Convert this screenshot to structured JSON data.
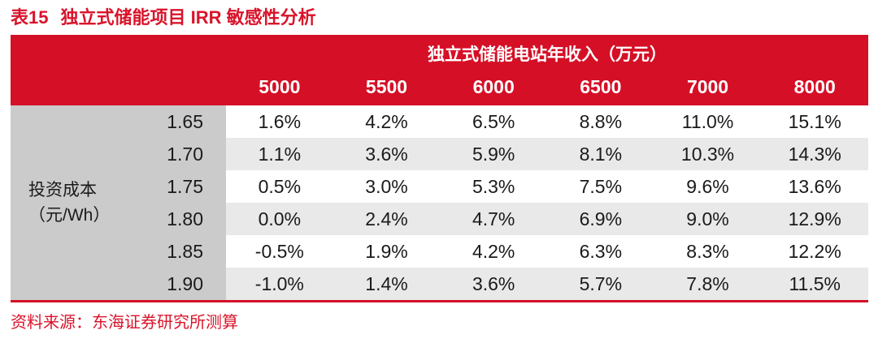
{
  "title": {
    "prefix": "表15",
    "text": "独立式储能项目 IRR 敏感性分析"
  },
  "table": {
    "column_group_header": "独立式储能电站年收入（万元）",
    "row_group_label_line1": "投资成本",
    "row_group_label_line2": "（元/Wh）",
    "column_headers": [
      "5000",
      "5500",
      "6000",
      "6500",
      "7000",
      "8000"
    ],
    "rows": [
      {
        "cost": "1.65",
        "values": [
          "1.6%",
          "4.2%",
          "6.5%",
          "8.8%",
          "11.0%",
          "15.1%"
        ]
      },
      {
        "cost": "1.70",
        "values": [
          "1.1%",
          "3.6%",
          "5.9%",
          "8.1%",
          "10.3%",
          "14.3%"
        ]
      },
      {
        "cost": "1.75",
        "values": [
          "0.5%",
          "3.0%",
          "5.3%",
          "7.5%",
          "9.6%",
          "13.6%"
        ]
      },
      {
        "cost": "1.80",
        "values": [
          "0.0%",
          "2.4%",
          "4.7%",
          "6.9%",
          "9.0%",
          "12.9%"
        ]
      },
      {
        "cost": "1.85",
        "values": [
          "-0.5%",
          "1.9%",
          "4.2%",
          "6.3%",
          "8.3%",
          "12.2%"
        ]
      },
      {
        "cost": "1.90",
        "values": [
          "-1.0%",
          "1.4%",
          "3.6%",
          "5.7%",
          "7.8%",
          "11.5%"
        ]
      }
    ]
  },
  "footer": {
    "source": "资料来源：东海证券研究所测算"
  },
  "colors": {
    "accent_red": "#d50f26",
    "title_red": "#d9142b",
    "header_text_white": "#ffffff",
    "left_block_gray": "#cbcbcb",
    "alt_row_gray": "#e9e9e9",
    "body_text": "#1a1a1a"
  }
}
